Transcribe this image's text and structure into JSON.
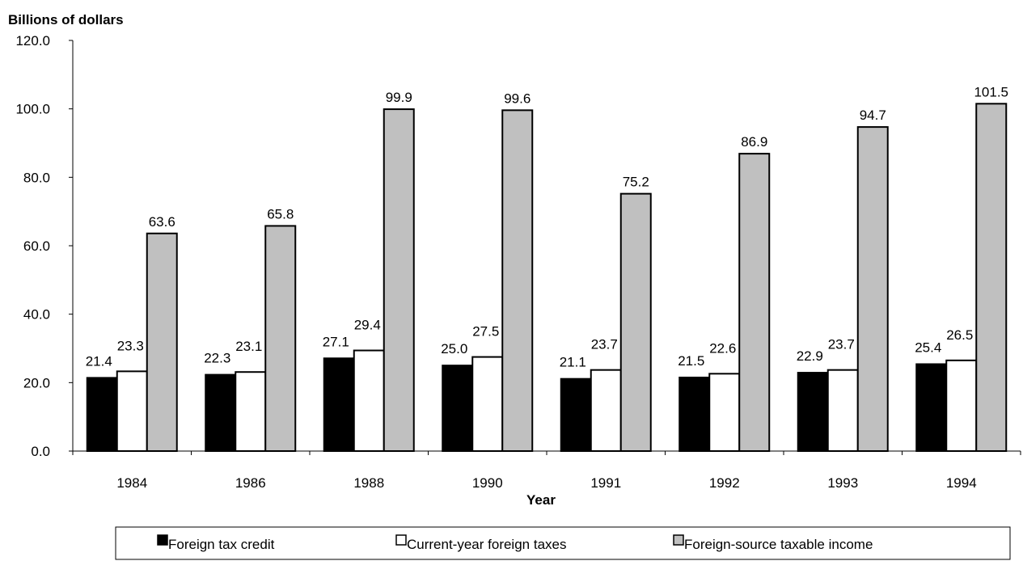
{
  "chart_data": {
    "type": "bar",
    "title": "",
    "ylabel": "Billions of dollars",
    "xlabel": "Year",
    "categories": [
      "1984",
      "1986",
      "1988",
      "1990",
      "1991",
      "1992",
      "1993",
      "1994"
    ],
    "ylim": [
      0,
      120
    ],
    "yticks": [
      "0.0",
      "20.0",
      "40.0",
      "60.0",
      "80.0",
      "100.0",
      "120.0"
    ],
    "grid": false,
    "legend_position": "bottom",
    "series": [
      {
        "name": "Foreign tax credit",
        "color": "#000000",
        "values": [
          21.4,
          22.3,
          27.1,
          25.0,
          21.1,
          21.5,
          22.9,
          25.4
        ],
        "labels": [
          "21.4",
          "22.3",
          "27.1",
          "25.0",
          "21.1",
          "21.5",
          "22.9",
          "25.4"
        ]
      },
      {
        "name": "Current-year foreign taxes",
        "color": "#ffffff",
        "values": [
          23.3,
          23.1,
          29.4,
          27.5,
          23.7,
          22.6,
          23.7,
          26.5
        ],
        "labels": [
          "23.3",
          "23.1",
          "29.4",
          "27.5",
          "23.7",
          "22.6",
          "23.7",
          "26.5"
        ]
      },
      {
        "name": "Foreign-source taxable income",
        "color": "#c0c0c0",
        "values": [
          63.6,
          65.8,
          99.9,
          99.6,
          75.2,
          86.9,
          94.7,
          101.5
        ],
        "labels": [
          "63.6",
          "65.8",
          "99.9",
          "99.6",
          "75.2",
          "86.9",
          "94.7",
          "101.5"
        ]
      }
    ]
  }
}
